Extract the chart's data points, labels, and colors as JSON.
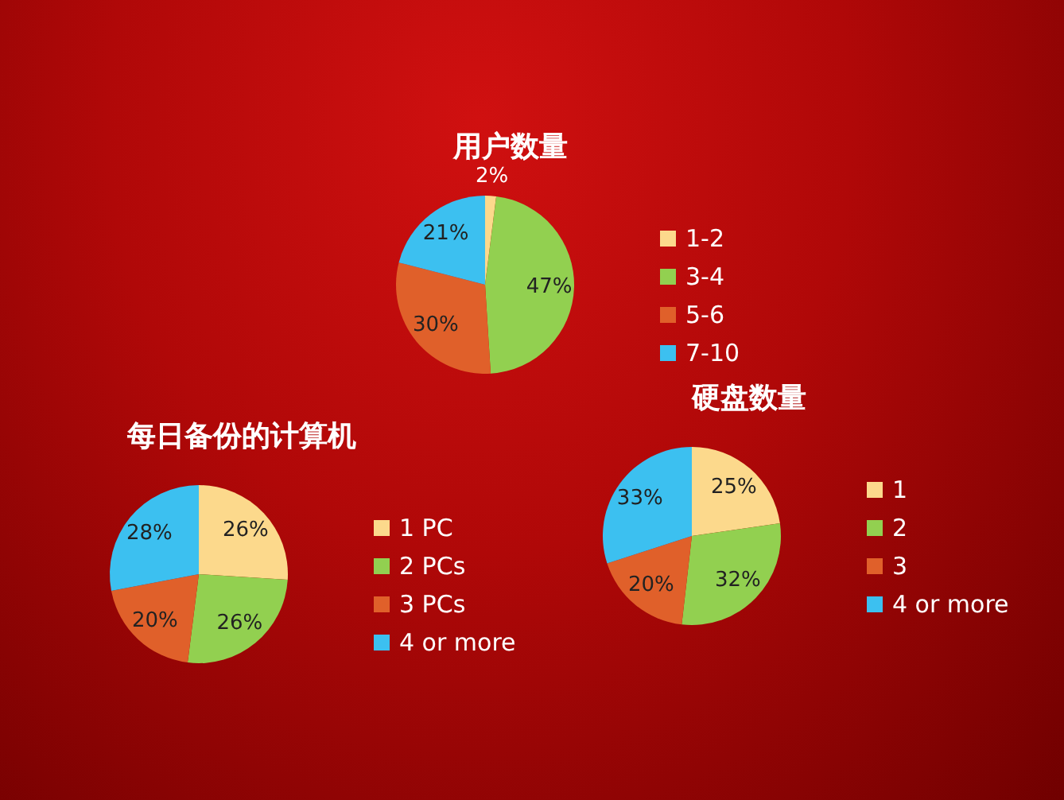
{
  "chart_data": [
    {
      "type": "pie",
      "title": "用户数量",
      "categories": [
        "1-2",
        "3-4",
        "5-6",
        "7-10"
      ],
      "values": [
        2,
        47,
        30,
        21
      ],
      "value_labels": [
        "2%",
        "47%",
        "30%",
        "21%"
      ],
      "colors": [
        "#fcd98c",
        "#92d050",
        "#e0602a",
        "#3cc0f0"
      ],
      "legend": "right"
    },
    {
      "type": "pie",
      "title": "每日备份的计算机",
      "categories": [
        "1 PC",
        "2 PCs",
        "3 PCs",
        "4 or more"
      ],
      "values": [
        26,
        26,
        20,
        28
      ],
      "value_labels": [
        "26%",
        "26%",
        "20%",
        "28%"
      ],
      "colors": [
        "#fcd98c",
        "#92d050",
        "#e0602a",
        "#3cc0f0"
      ],
      "legend": "right"
    },
    {
      "type": "pie",
      "title": "硬盘数量",
      "categories": [
        "1",
        "2",
        "3",
        "4 or more"
      ],
      "values": [
        25,
        32,
        20,
        33
      ],
      "value_labels": [
        "25%",
        "32%",
        "20%",
        "33%"
      ],
      "colors": [
        "#fcd98c",
        "#92d050",
        "#e0602a",
        "#3cc0f0"
      ],
      "legend": "right"
    }
  ]
}
